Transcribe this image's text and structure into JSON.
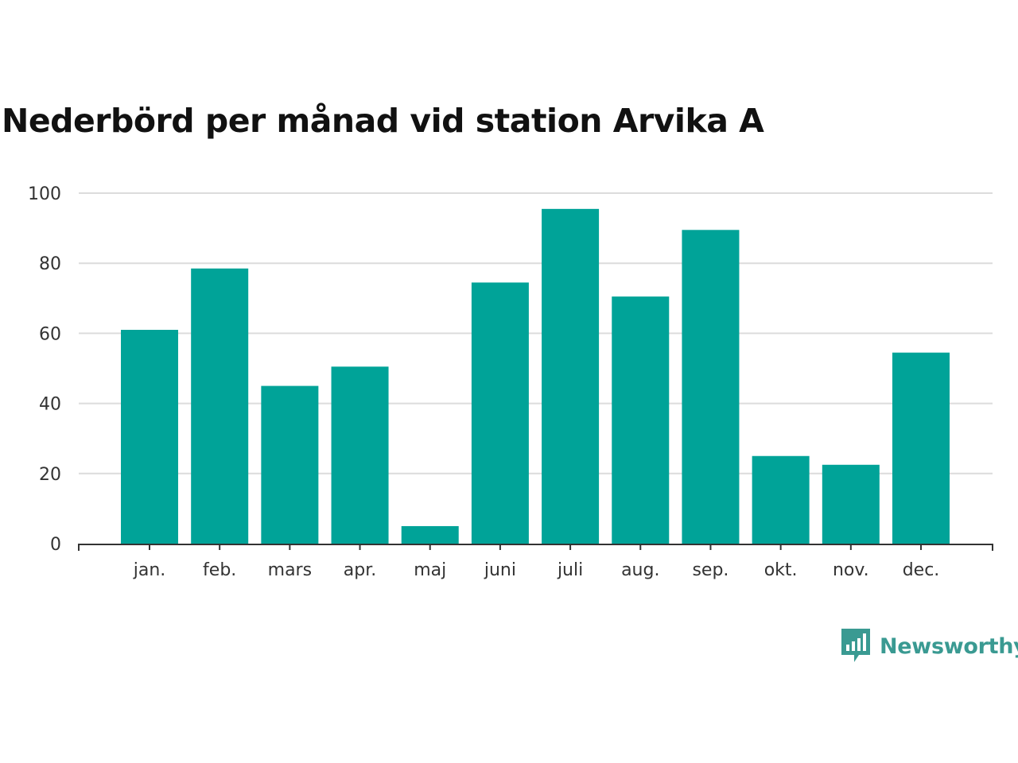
{
  "brand": {
    "name": "Newsworthy",
    "icon": "newsworthy-logo-icon",
    "color": "#3a9a92"
  },
  "chart_data": {
    "type": "bar",
    "title": "Nederbörd per månad vid station Arvika A",
    "xlabel": "",
    "ylabel": "",
    "categories": [
      "jan.",
      "feb.",
      "mars",
      "apr.",
      "maj",
      "juni",
      "juli",
      "aug.",
      "sep.",
      "okt.",
      "nov.",
      "dec."
    ],
    "values": [
      61,
      78.5,
      45,
      50.5,
      5,
      74.5,
      95.5,
      70.5,
      89.5,
      25,
      22.5,
      54.5
    ],
    "ylim": [
      0,
      100
    ],
    "yticks": [
      0,
      20,
      40,
      60,
      80,
      100
    ],
    "grid": true,
    "legend": "none",
    "bar_color": "#00a398",
    "grid_color": "#dcdcdc",
    "axis_color": "#333333"
  }
}
